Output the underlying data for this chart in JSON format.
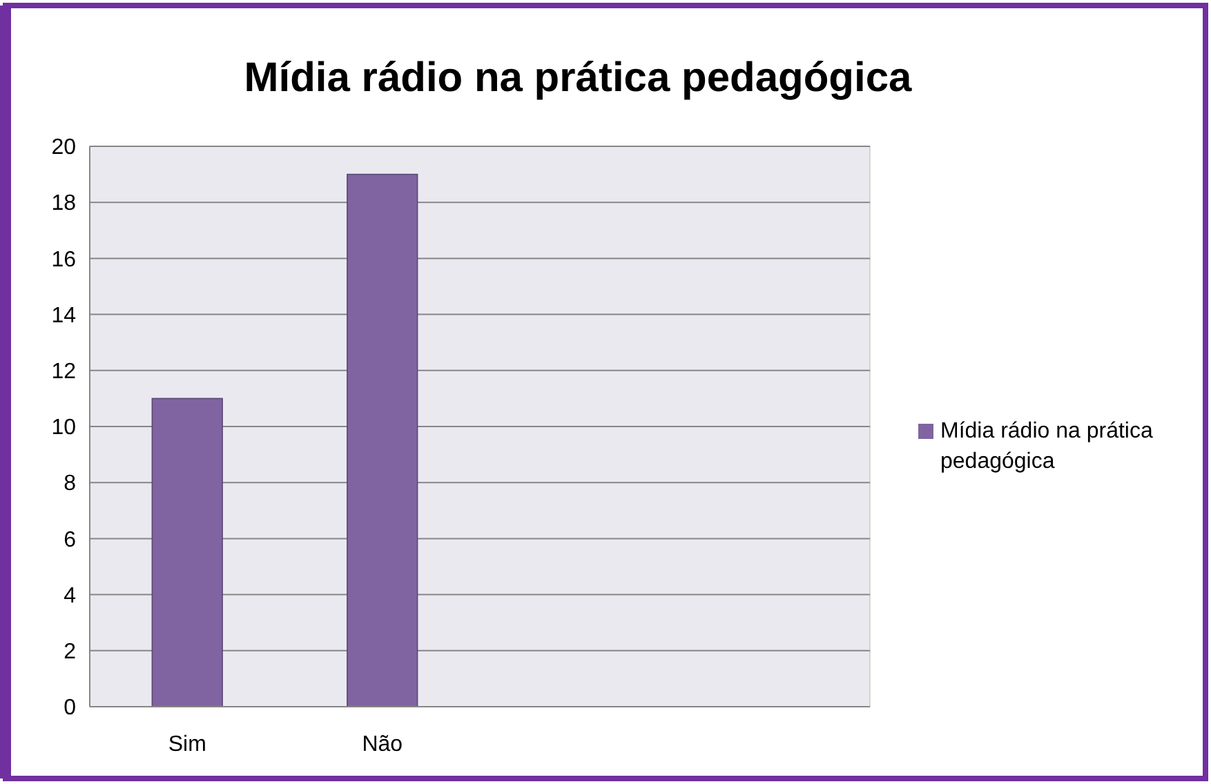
{
  "chart_data": {
    "type": "bar",
    "title": "Mídia rádio na prática pedagógica",
    "categories": [
      "Sim",
      "Não",
      null,
      null
    ],
    "series": [
      {
        "name": "Mídia rádio na prática pedagógica",
        "color": "#8064a2",
        "values": [
          11,
          19,
          null,
          null
        ]
      }
    ],
    "ylim": [
      0,
      20
    ],
    "yticks": [
      0,
      2,
      4,
      6,
      8,
      10,
      12,
      14,
      16,
      18,
      20
    ],
    "grid": "y",
    "legend": "right"
  }
}
